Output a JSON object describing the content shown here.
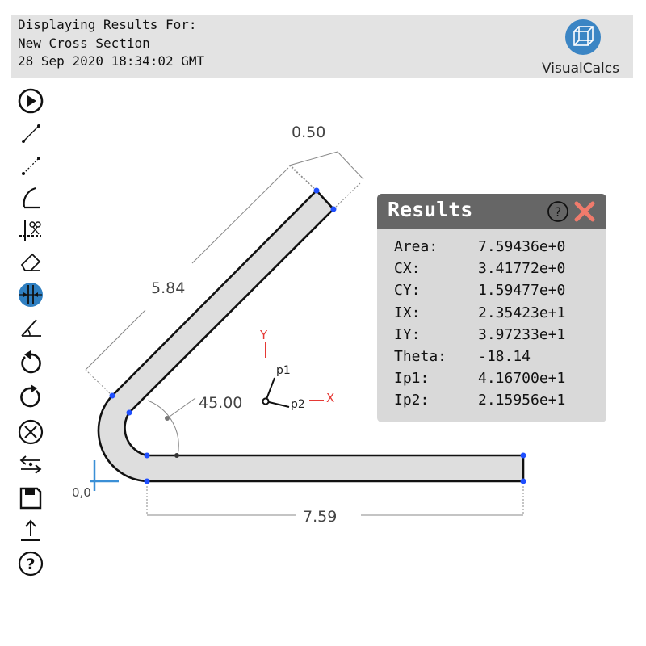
{
  "header": {
    "line1": "Displaying Results For:",
    "line2": "New Cross Section",
    "line3": "28 Sep 2020 18:34:02 GMT",
    "brand": "VisualCalcs",
    "brand_logo": "cube-logo"
  },
  "toolbar": [
    {
      "name": "play-icon",
      "active": false
    },
    {
      "name": "line-tool-icon",
      "active": false
    },
    {
      "name": "dashed-line-tool-icon",
      "active": false
    },
    {
      "name": "arc-tool-icon",
      "active": false
    },
    {
      "name": "trim-tool-icon",
      "active": false
    },
    {
      "name": "eraser-icon",
      "active": false
    },
    {
      "name": "dimension-tool-icon",
      "active": true
    },
    {
      "name": "angle-tool-icon",
      "active": false
    },
    {
      "name": "undo-icon",
      "active": false
    },
    {
      "name": "redo-icon",
      "active": false
    },
    {
      "name": "clear-icon",
      "active": false
    },
    {
      "name": "swap-icon",
      "active": false
    },
    {
      "name": "save-icon",
      "active": false
    },
    {
      "name": "upload-icon",
      "active": false
    },
    {
      "name": "help-icon",
      "active": false
    }
  ],
  "colors": {
    "accent": "#2f7fc1",
    "vertex": "#1f4fff",
    "close": "#f07b6c",
    "axis_red": "#e53935",
    "section_fill": "#dedede"
  },
  "drawing": {
    "thickness_dim": "0.50",
    "inclined_length_dim": "5.84",
    "angle_dim": "45.00",
    "base_length_dim": "7.59",
    "origin_label": "0,0",
    "axis_y": "Y",
    "axis_x": "X",
    "p1": "p1",
    "p2": "p2"
  },
  "results": {
    "title": "Results",
    "rows": [
      {
        "key": "Area:",
        "value": "7.59436e+0"
      },
      {
        "key": "CX:",
        "value": "3.41772e+0"
      },
      {
        "key": "CY:",
        "value": "1.59477e+0"
      },
      {
        "key": "IX:",
        "value": "2.35423e+1"
      },
      {
        "key": "IY:",
        "value": "3.97233e+1"
      },
      {
        "key": "Theta:",
        "value": "-18.14"
      },
      {
        "key": "Ip1:",
        "value": "4.16700e+1"
      },
      {
        "key": "Ip2:",
        "value": "2.15956e+1"
      }
    ]
  }
}
